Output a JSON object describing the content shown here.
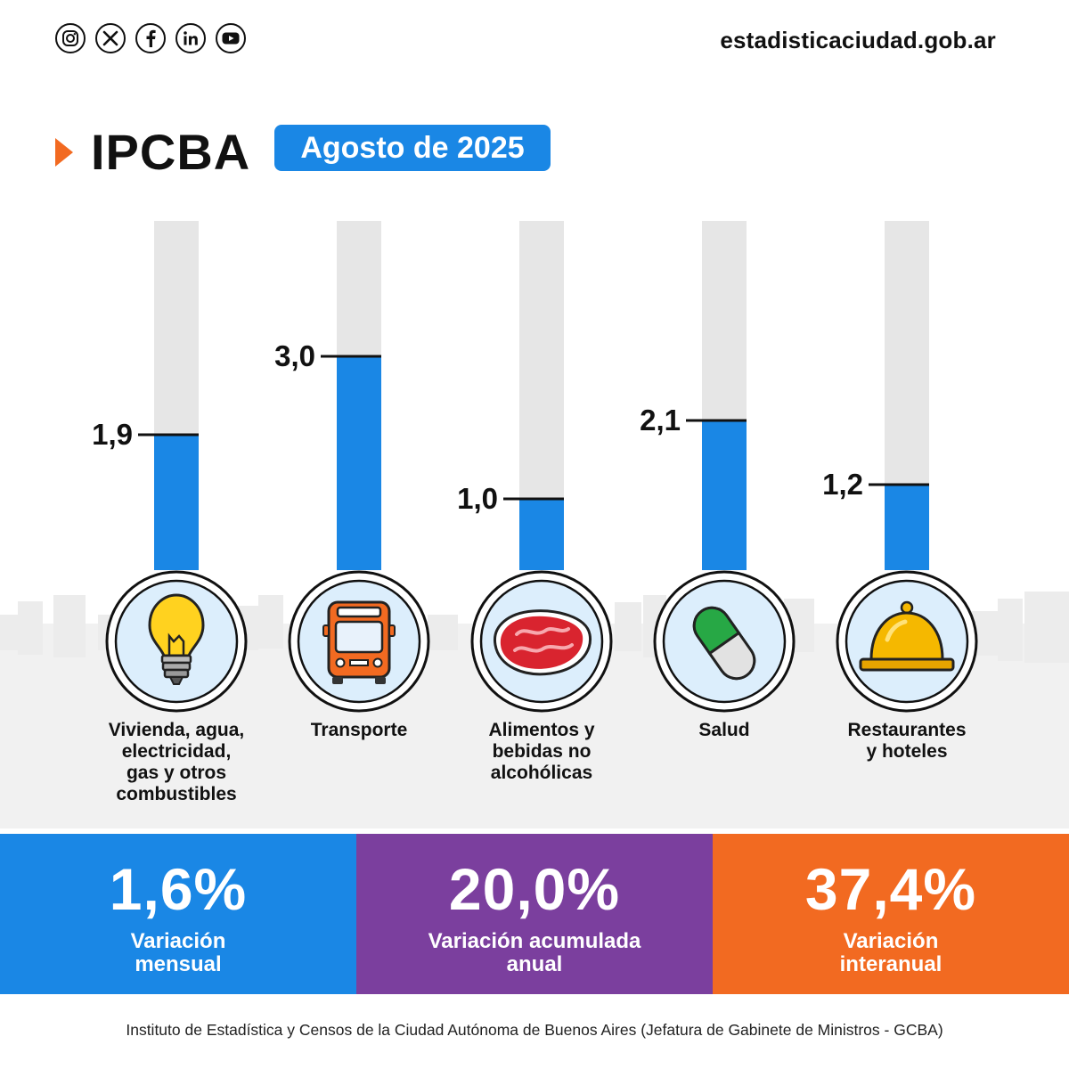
{
  "header": {
    "social": [
      {
        "icon": "instagram-icon"
      },
      {
        "icon": "x-icon"
      },
      {
        "icon": "facebook-icon"
      },
      {
        "icon": "linkedin-icon"
      },
      {
        "icon": "youtube-icon"
      }
    ],
    "site": "estadisticaciudad.gob.ar"
  },
  "title": "IPCBA",
  "period": "Agosto de 2025",
  "colors": {
    "bar": "#1a87e5",
    "track": "#e6e6e6",
    "accent": "#f26a21",
    "purple": "#7b3f9e",
    "icon_bg": "#dceefc"
  },
  "chart_data": {
    "type": "bar",
    "ylim": [
      0,
      4.9
    ],
    "categories": [
      "Vivienda, agua, electricidad, gas y otros combustibles",
      "Transporte",
      "Alimentos y bebidas no alcohólicas",
      "Salud",
      "Restaurantes y hoteles"
    ],
    "values": [
      1.9,
      3.0,
      1.0,
      2.1,
      1.2
    ],
    "value_labels": [
      "1,9",
      "3,0",
      "1,0",
      "2,1",
      "1,2"
    ],
    "icons": [
      "lightbulb-icon",
      "bus-icon",
      "meat-icon",
      "pill-icon",
      "service-bell-icon"
    ]
  },
  "categories_text": [
    {
      "lines": [
        "Vivienda, agua,",
        "electricidad,",
        "gas y otros",
        "combustibles"
      ]
    },
    {
      "lines": [
        "Transporte"
      ]
    },
    {
      "lines": [
        "Alimentos y",
        "bebidas no",
        "alcohólicas"
      ]
    },
    {
      "lines": [
        "Salud"
      ]
    },
    {
      "lines": [
        "Restaurantes",
        "y hoteles"
      ]
    }
  ],
  "stats": [
    {
      "value": "1,6%",
      "label_lines": [
        "Variación",
        "mensual"
      ],
      "color": "#1a87e5"
    },
    {
      "value": "20,0%",
      "label_lines": [
        "Variación acumulada",
        "anual"
      ],
      "color": "#7b3f9e"
    },
    {
      "value": "37,4%",
      "label_lines": [
        "Variación",
        "interanual"
      ],
      "color": "#f26a21"
    }
  ],
  "footer": "Instituto de Estadística y Censos de la Ciudad Autónoma de Buenos Aires (Jefatura de Gabinete de Ministros - GCBA)"
}
